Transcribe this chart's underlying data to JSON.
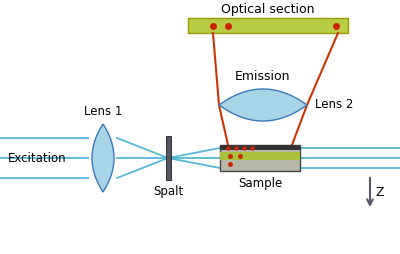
{
  "bg_color": "#ffffff",
  "title": "Optical section",
  "emission_label": "Emission",
  "lens1_label": "Lens 1",
  "lens2_label": "Lens 2",
  "excitation_label": "Excitation",
  "spalt_label": "Spalt",
  "sample_label": "Sample",
  "z_label": "Z",
  "excitation_beam_color": "#55b8d4",
  "emission_ray_color": "#cc3300",
  "lens_color_light": "#a8d4e8",
  "lens_color_dark": "#3a7ab8",
  "optical_section_color": "#b8cc44",
  "optical_section_border": "#999900",
  "sample_gray": "#b8b8a8",
  "sample_dark": "#333333",
  "sample_green": "#aabf3a",
  "spalt_color": "#555566",
  "dot_color": "#cc2200",
  "z_arrow_color": "#555566"
}
